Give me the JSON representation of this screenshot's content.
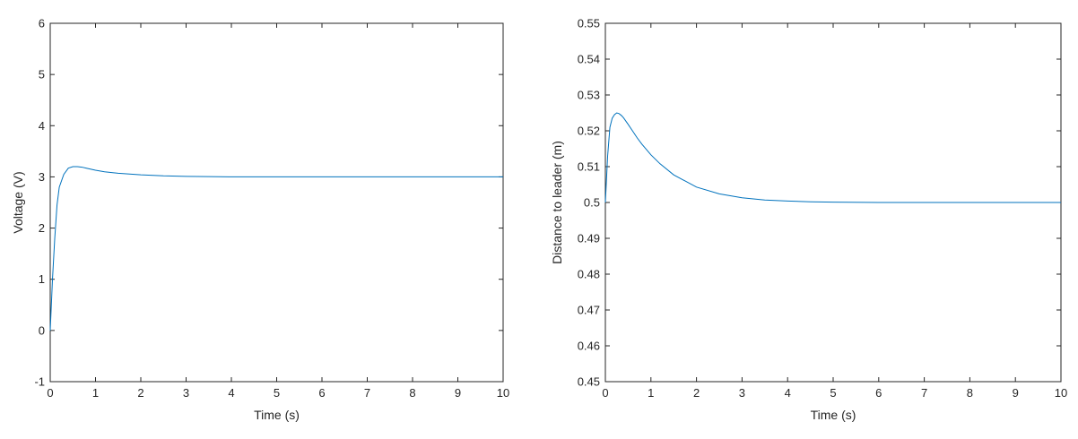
{
  "chart_data": [
    {
      "type": "line",
      "xlabel": "Time (s)",
      "ylabel": "Voltage (V)",
      "xlim": [
        0,
        10
      ],
      "ylim": [
        -1,
        6
      ],
      "xticks": [
        0,
        1,
        2,
        3,
        4,
        5,
        6,
        7,
        8,
        9,
        10
      ],
      "yticks": [
        -1,
        0,
        1,
        2,
        3,
        4,
        5,
        6
      ],
      "grid": false,
      "series": [
        {
          "color": "#0072BD",
          "x": [
            0,
            0.05,
            0.1,
            0.15,
            0.2,
            0.3,
            0.4,
            0.5,
            0.6,
            0.7,
            0.8,
            1.0,
            1.2,
            1.5,
            2.0,
            2.5,
            3.0,
            3.5,
            4.0,
            5.0,
            6.0,
            7.0,
            8.0,
            9.0,
            10.0
          ],
          "y": [
            0,
            1.0,
            1.8,
            2.45,
            2.8,
            3.05,
            3.17,
            3.2,
            3.2,
            3.19,
            3.17,
            3.13,
            3.1,
            3.07,
            3.04,
            3.02,
            3.01,
            3.005,
            3.0,
            3.0,
            3.0,
            3.0,
            3.0,
            3.0,
            3.0
          ]
        }
      ]
    },
    {
      "type": "line",
      "xlabel": "Time (s)",
      "ylabel": "Distance to leader (m)",
      "xlim": [
        0,
        10
      ],
      "ylim": [
        0.45,
        0.55
      ],
      "xticks": [
        0,
        1,
        2,
        3,
        4,
        5,
        6,
        7,
        8,
        9,
        10
      ],
      "yticks": [
        0.45,
        0.46,
        0.47,
        0.48,
        0.49,
        0.5,
        0.51,
        0.52,
        0.53,
        0.54,
        0.55
      ],
      "grid": false,
      "series": [
        {
          "color": "#0072BD",
          "x": [
            0,
            0.05,
            0.1,
            0.15,
            0.2,
            0.25,
            0.3,
            0.35,
            0.4,
            0.5,
            0.6,
            0.7,
            0.8,
            1.0,
            1.2,
            1.5,
            2.0,
            2.5,
            3.0,
            3.5,
            4.0,
            4.5,
            5.0,
            6.0,
            7.0,
            8.0,
            9.0,
            10.0
          ],
          "y": [
            0.5,
            0.513,
            0.521,
            0.5235,
            0.5245,
            0.525,
            0.5248,
            0.5243,
            0.5236,
            0.5218,
            0.5199,
            0.518,
            0.5163,
            0.5133,
            0.5108,
            0.5077,
            0.5043,
            0.5024,
            0.5013,
            0.5007,
            0.5004,
            0.5002,
            0.5001,
            0.5,
            0.5,
            0.5,
            0.5,
            0.5
          ]
        }
      ]
    }
  ]
}
